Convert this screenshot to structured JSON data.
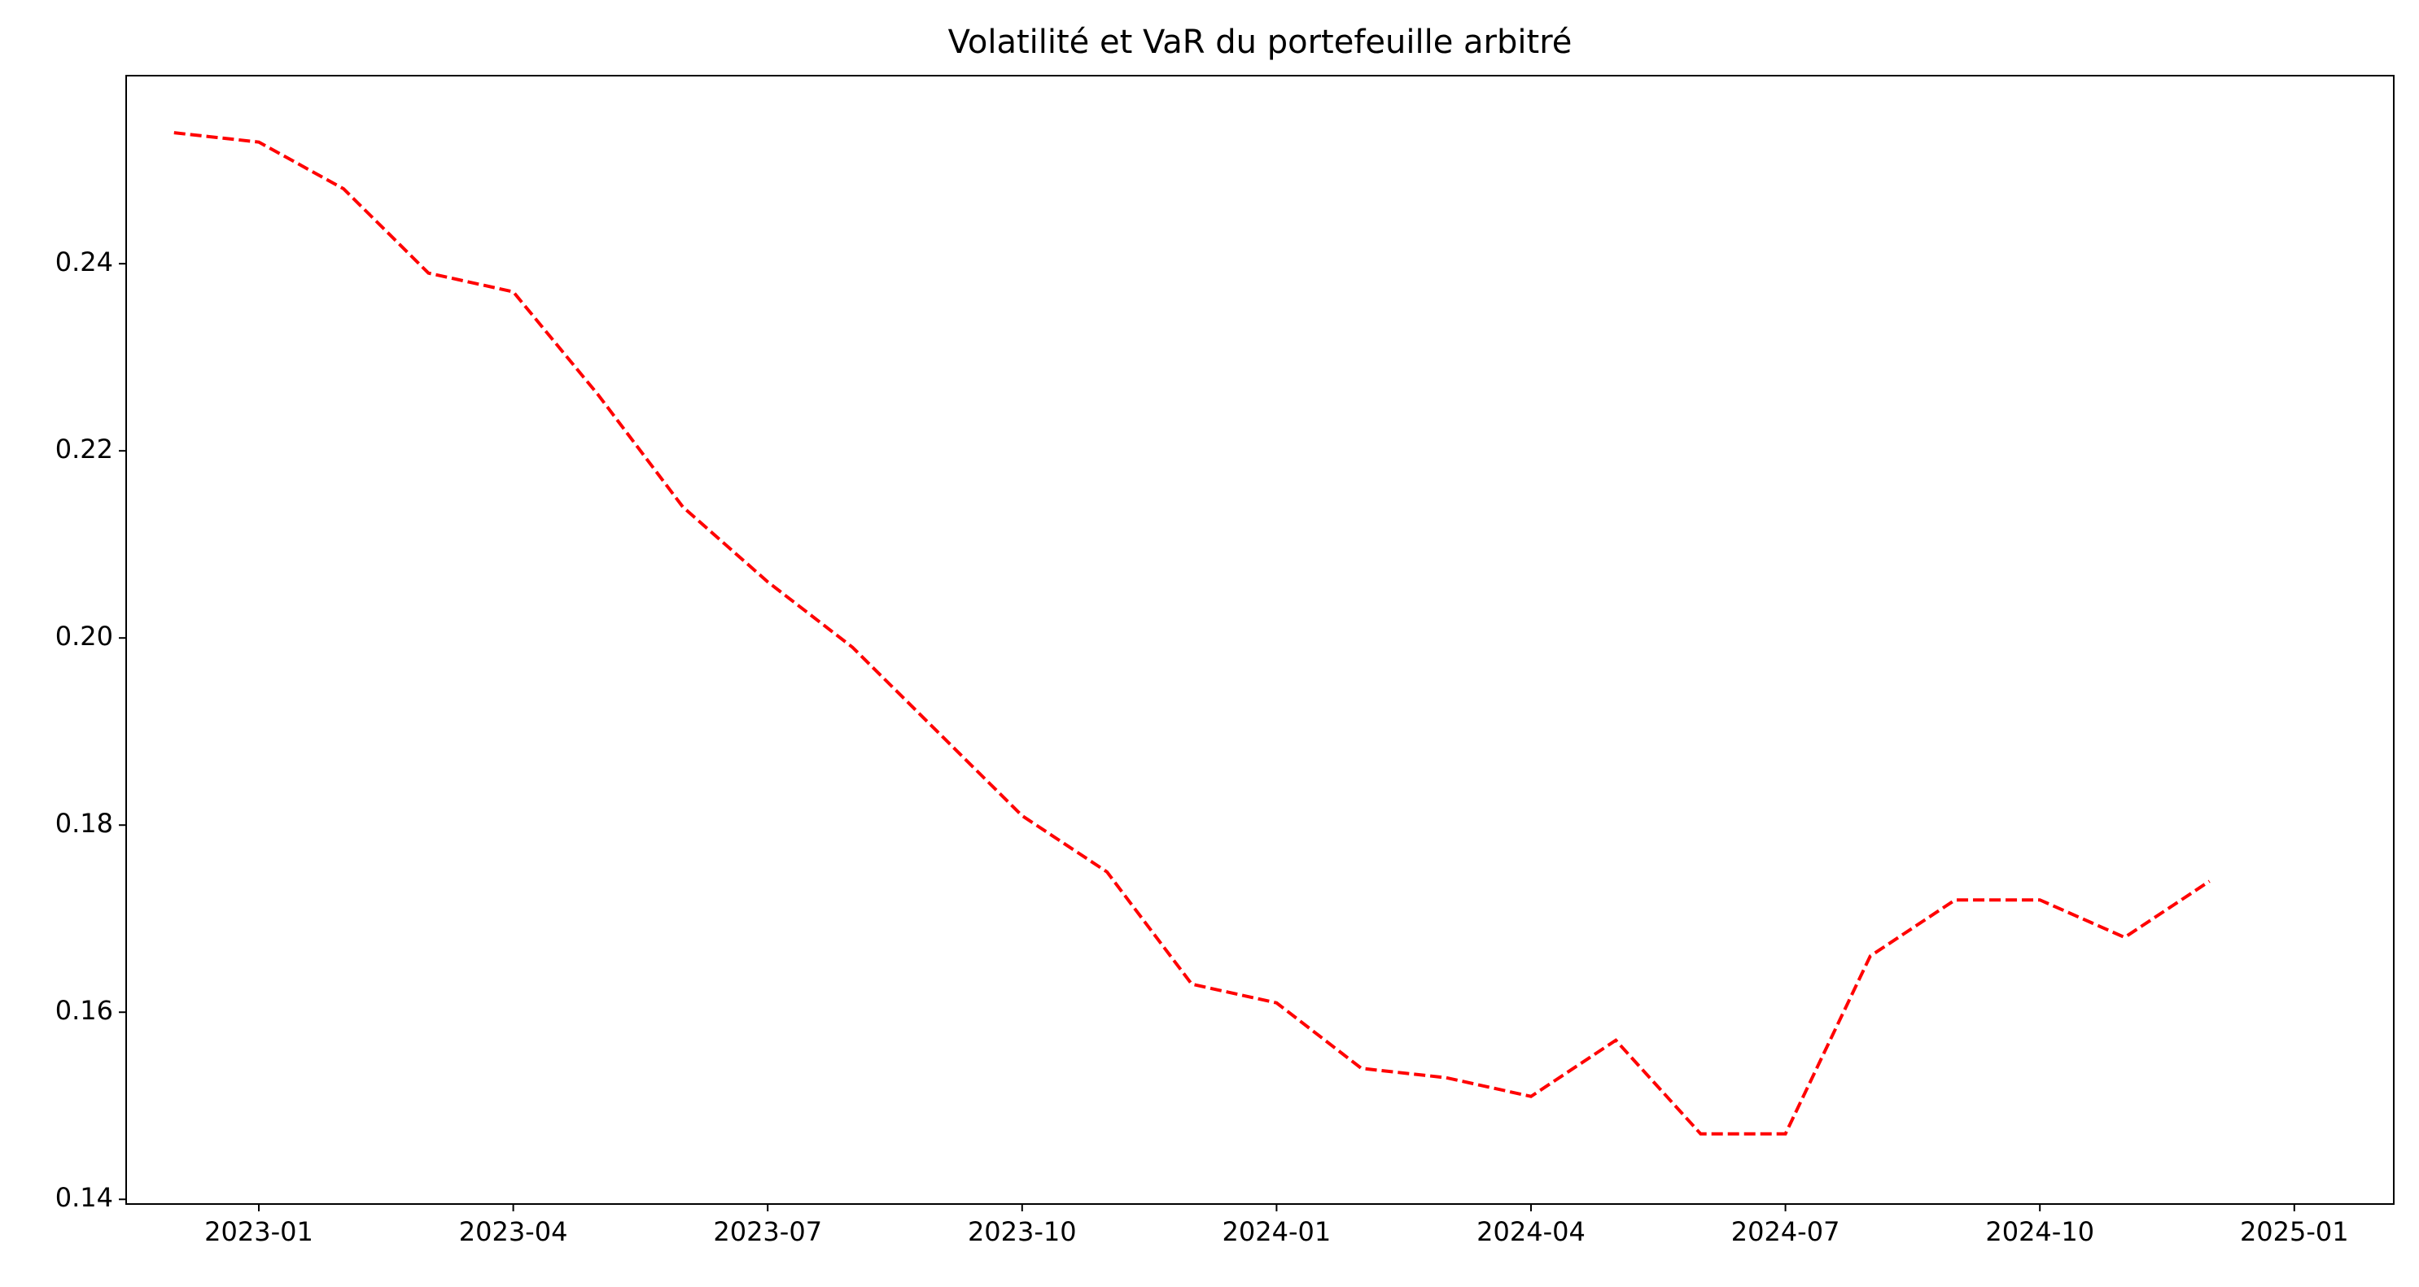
{
  "chart_data": {
    "type": "line",
    "title": "Volatilité et VaR du portefeuille arbitré",
    "x": [
      "2022-12",
      "2023-01",
      "2023-02",
      "2023-03",
      "2023-04",
      "2023-05",
      "2023-06",
      "2023-07",
      "2023-08",
      "2023-09",
      "2023-10",
      "2023-11",
      "2023-12",
      "2024-01",
      "2024-02",
      "2024-03",
      "2024-04",
      "2024-05",
      "2024-06",
      "2024-07",
      "2024-08",
      "2024-09",
      "2024-10",
      "2024-11",
      "2024-12"
    ],
    "series": [
      {
        "color": "#ff0000",
        "values": [
          0.254,
          0.253,
          0.248,
          0.239,
          0.237,
          0.226,
          0.214,
          0.206,
          0.199,
          0.19,
          0.181,
          0.175,
          0.163,
          0.161,
          0.154,
          0.153,
          0.151,
          0.157,
          0.147,
          0.147,
          0.166,
          0.172,
          0.172,
          0.168,
          0.174
        ]
      }
    ],
    "xticks": [
      "2023-01",
      "2023-04",
      "2023-07",
      "2023-10",
      "2024-01",
      "2024-04",
      "2024-07",
      "2024-10",
      "2025-01"
    ],
    "ylim": [
      0.1395,
      0.2601
    ],
    "yticks": [
      0.14,
      0.16,
      0.18,
      {
        "value": 0.2,
        "label": "0.20"
      },
      0.22,
      0.24
    ],
    "grid": false,
    "line_style": "dashed"
  }
}
